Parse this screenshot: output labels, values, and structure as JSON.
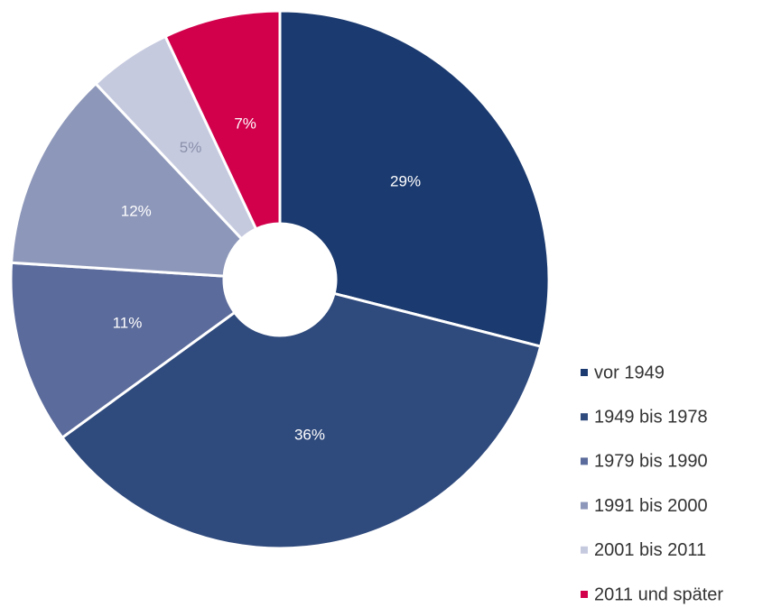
{
  "chart_data": {
    "type": "pie",
    "categories": [
      "vor 1949",
      "1949 bis 1978",
      "1979 bis 1990",
      "1991 bis 2000",
      "2001 bis 2011",
      "2011 und später"
    ],
    "values": [
      29,
      36,
      11,
      12,
      5,
      7
    ],
    "value_labels": [
      "29%",
      "36%",
      "11%",
      "12%",
      "5%",
      "7%"
    ],
    "colors": [
      "#1b3a6f",
      "#2f4a7d",
      "#5b6b9b",
      "#8d97b9",
      "#c6cadf",
      "#d2004b"
    ],
    "label_colors": [
      "#ffffff",
      "#ffffff",
      "#ffffff",
      "#ffffff",
      "#8a90ab",
      "#ffffff"
    ],
    "legend": "right-bottom"
  }
}
